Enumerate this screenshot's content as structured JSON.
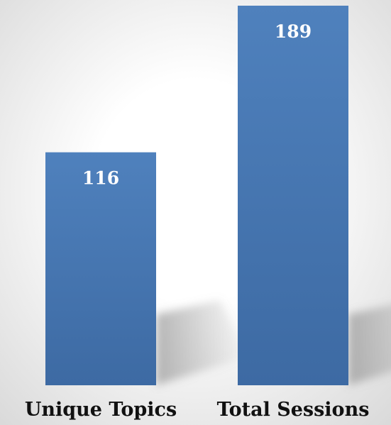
{
  "chart_data": {
    "type": "bar",
    "title": "",
    "xlabel": "",
    "ylabel": "",
    "categories": [
      "Unique Topics",
      "Total Sessions"
    ],
    "values": [
      116,
      189
    ],
    "data_labels": [
      "116",
      "189"
    ],
    "ylim": [
      0,
      189
    ],
    "grid": false,
    "legend": "none",
    "colors": {
      "bar_top": "#4f81bd",
      "bar_bottom": "#3d6aa3",
      "label_text": "#111111",
      "data_label_text": "#ffffff",
      "backdrop_light": "#ffffff",
      "backdrop_dark": "#d9d9d9"
    }
  }
}
